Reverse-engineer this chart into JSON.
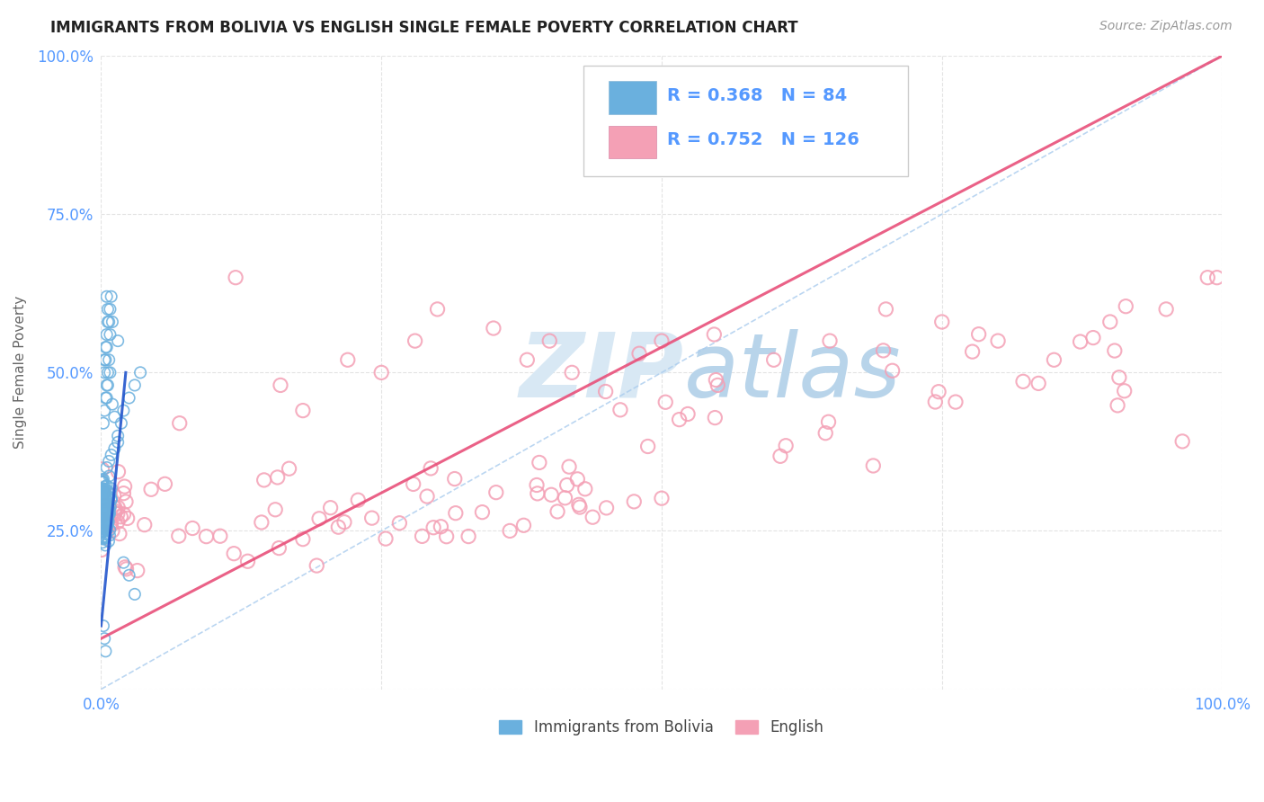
{
  "title": "IMMIGRANTS FROM BOLIVIA VS ENGLISH SINGLE FEMALE POVERTY CORRELATION CHART",
  "source": "Source: ZipAtlas.com",
  "ylabel": "Single Female Poverty",
  "legend_label1": "Immigrants from Bolivia",
  "legend_label2": "English",
  "R1": 0.368,
  "N1": 84,
  "R2": 0.752,
  "N2": 126,
  "color_blue": "#6ab0de",
  "color_pink": "#f4a0b5",
  "color_blue_line": "#2255cc",
  "color_blue_dash": "#aaccee",
  "color_pink_line": "#e8507a",
  "background": "#ffffff",
  "watermark_color": "#d8e8f4",
  "tick_color": "#5599ff",
  "ylabel_color": "#666666",
  "title_color": "#222222",
  "source_color": "#999999",
  "grid_color": "#dddddd"
}
